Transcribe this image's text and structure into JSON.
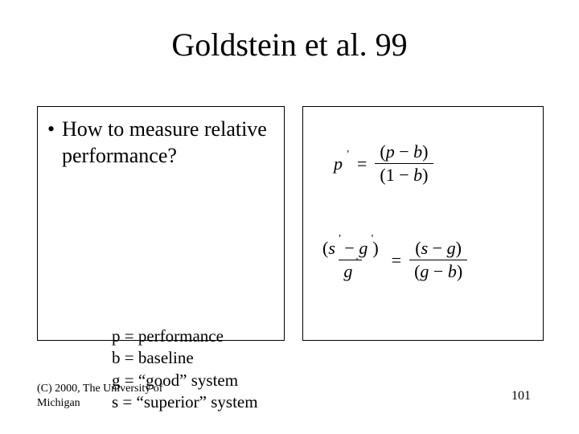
{
  "title": "Goldstein et al. 99",
  "bullet": {
    "dot": "•",
    "text": "How to measure relative performance?"
  },
  "defs": {
    "p": "p = performance",
    "b": "b = baseline",
    "g": "g = “good” system",
    "s": "s = “superior” system"
  },
  "eq1": {
    "lhs_var": "p",
    "eq": "=",
    "num_l": "(",
    "num_a": "p",
    "num_op": "−",
    "num_b": "b",
    "num_r": ")",
    "den_l": "(",
    "den_a": "1",
    "den_op": "−",
    "den_b": "b",
    "den_r": ")"
  },
  "eq2": {
    "l_num_l": "(",
    "l_num_a": "s",
    "l_num_op": "−",
    "l_num_b": "g",
    "l_num_r": ")",
    "l_den": "g",
    "eq": "=",
    "r_num_l": "(",
    "r_num_a": "s",
    "r_num_op": "−",
    "r_num_b": "g",
    "r_num_r": ")",
    "r_den_l": "(",
    "r_den_a": "g",
    "r_den_op": "−",
    "r_den_b": "b",
    "r_den_r": ")"
  },
  "footer": {
    "copyright": "(C) 2000, The University of Michigan",
    "page": "101"
  },
  "style": {
    "bg": "#ffffff",
    "text": "#000000",
    "title_fontsize": 40,
    "body_fontsize": 26,
    "defs_fontsize": 21,
    "eq_fontsize": 22,
    "footer_fontsize": 14,
    "border_color": "#000000"
  }
}
